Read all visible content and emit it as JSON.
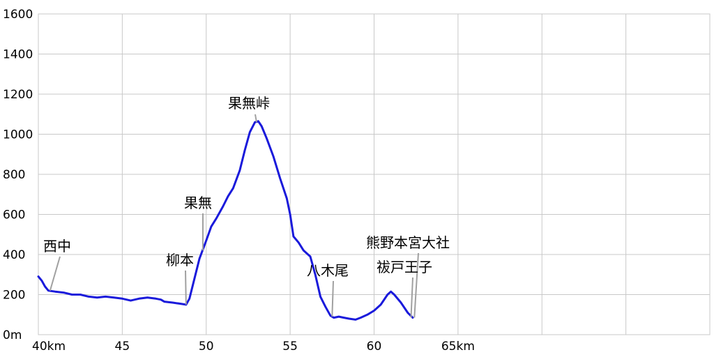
{
  "chart_data": {
    "type": "line",
    "ylim": [
      0,
      1600
    ],
    "xlim": [
      40,
      80
    ],
    "grid": true,
    "x_ticks": [
      {
        "value": 40,
        "label": "40km"
      },
      {
        "value": 45,
        "label": "45"
      },
      {
        "value": 50,
        "label": "50"
      },
      {
        "value": 55,
        "label": "55"
      },
      {
        "value": 60,
        "label": "60"
      },
      {
        "value": 65,
        "label": "65km"
      }
    ],
    "x_grid": [
      40,
      45,
      50,
      55,
      60,
      65,
      70,
      75,
      80
    ],
    "y_ticks": [
      {
        "value": 0,
        "label": "0m"
      },
      {
        "value": 200,
        "label": "200"
      },
      {
        "value": 400,
        "label": "400"
      },
      {
        "value": 600,
        "label": "600"
      },
      {
        "value": 800,
        "label": "800"
      },
      {
        "value": 1000,
        "label": "1000"
      },
      {
        "value": 1200,
        "label": "1200"
      },
      {
        "value": 1400,
        "label": "1400"
      },
      {
        "value": 1600,
        "label": "1600"
      }
    ],
    "series": [
      {
        "color": "#1a1adb",
        "x": [
          40.0,
          40.2,
          40.4,
          40.6,
          41.0,
          41.5,
          42.0,
          42.5,
          43.0,
          43.5,
          44.0,
          44.5,
          45.0,
          45.5,
          46.0,
          46.5,
          47.0,
          47.3,
          47.5,
          48.0,
          48.4,
          48.8,
          49.0,
          49.3,
          49.6,
          50.0,
          50.3,
          50.6,
          51.0,
          51.3,
          51.6,
          52.0,
          52.3,
          52.6,
          52.9,
          53.1,
          53.3,
          53.6,
          54.0,
          54.4,
          54.8,
          55.0,
          55.2,
          55.5,
          55.8,
          56.2,
          56.5,
          56.8,
          57.1,
          57.4,
          57.6,
          57.9,
          58.2,
          58.5,
          58.9,
          59.2,
          59.6,
          60.0,
          60.4,
          60.8,
          61.0,
          61.2,
          61.6,
          62.0,
          62.3
        ],
        "y": [
          290,
          270,
          240,
          220,
          215,
          210,
          200,
          200,
          190,
          185,
          190,
          185,
          180,
          170,
          180,
          185,
          180,
          175,
          165,
          160,
          155,
          150,
          180,
          280,
          380,
          470,
          540,
          580,
          640,
          690,
          730,
          820,
          920,
          1010,
          1060,
          1065,
          1040,
          980,
          890,
          780,
          680,
          600,
          490,
          460,
          420,
          390,
          300,
          190,
          140,
          95,
          85,
          90,
          85,
          80,
          75,
          85,
          100,
          120,
          150,
          200,
          215,
          200,
          160,
          110,
          85
        ]
      }
    ],
    "annotations": [
      {
        "label": "西中",
        "x": 40.7,
        "y": 220
      },
      {
        "label": "柳本",
        "x": 48.8,
        "y": 150
      },
      {
        "label": "果無",
        "x": 49.8,
        "y": 420
      },
      {
        "label": "果無峠",
        "x": 53.0,
        "y": 1060
      },
      {
        "label": "八木尾",
        "x": 57.5,
        "y": 90
      },
      {
        "label": "熊野本宮大社",
        "x": 62.4,
        "y": 85
      },
      {
        "label": "祓戸王子",
        "x": 62.2,
        "y": 85
      }
    ]
  }
}
